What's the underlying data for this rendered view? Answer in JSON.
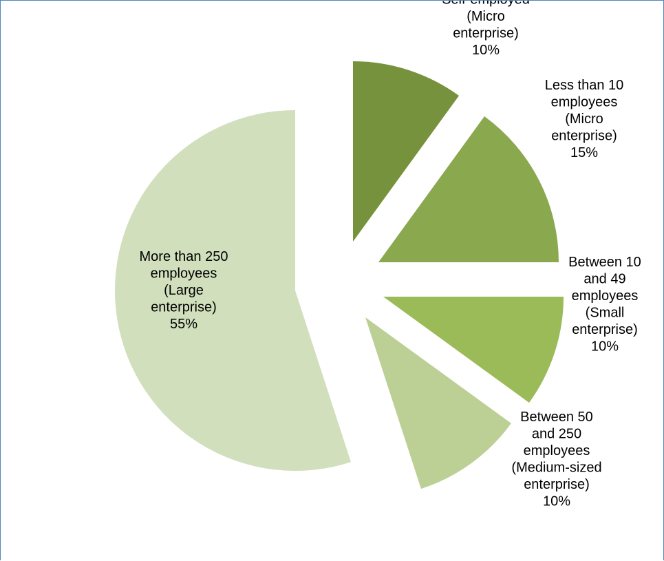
{
  "chart_data": {
    "type": "pie",
    "title": "",
    "start_angle_deg": 0,
    "direction": "clockwise",
    "exploded": true,
    "slices": [
      {
        "label_lines": [
          "Self-employed",
          "(Micro",
          "enterprise)",
          "10%"
        ],
        "value": 10,
        "color": "#77923c"
      },
      {
        "label_lines": [
          "Less than 10",
          "employees",
          "(Micro",
          "enterprise)",
          "15%"
        ],
        "value": 15,
        "color": "#8aa84e"
      },
      {
        "label_lines": [
          "Between 10",
          "and 49",
          "employees",
          "(Small",
          "enterprise)",
          "10%"
        ],
        "value": 10,
        "color": "#9bbb59"
      },
      {
        "label_lines": [
          "Between 50",
          "and 250",
          "employees",
          "(Medium-sized",
          "enterprise)",
          "10%"
        ],
        "value": 10,
        "color": "#bcd095"
      },
      {
        "label_lines": [
          "More than 250",
          "employees",
          "(Large",
          "enterprise)",
          "55%"
        ],
        "value": 55,
        "color": "#d1dfbd"
      }
    ]
  }
}
